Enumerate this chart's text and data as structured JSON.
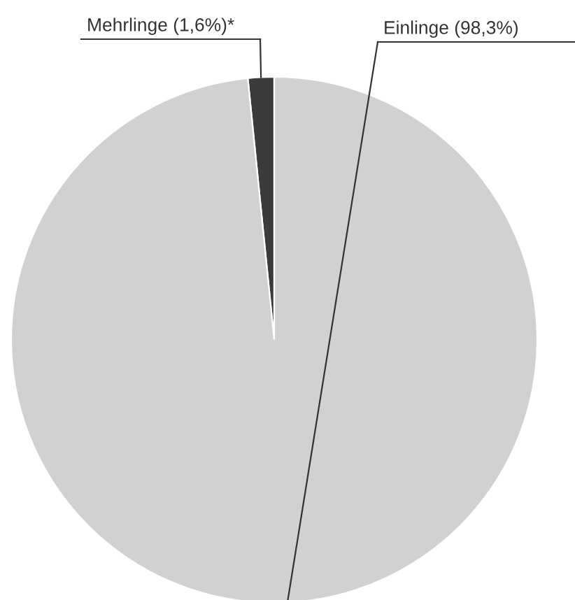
{
  "chart_data": {
    "type": "pie",
    "categories": [
      "Mehrlinge (1,6%)*",
      "Einlinge (98,3%)"
    ],
    "values": [
      1.6,
      98.3
    ],
    "colors": [
      "#3b3b3b",
      "#d1d1d1"
    ],
    "legend": false
  }
}
